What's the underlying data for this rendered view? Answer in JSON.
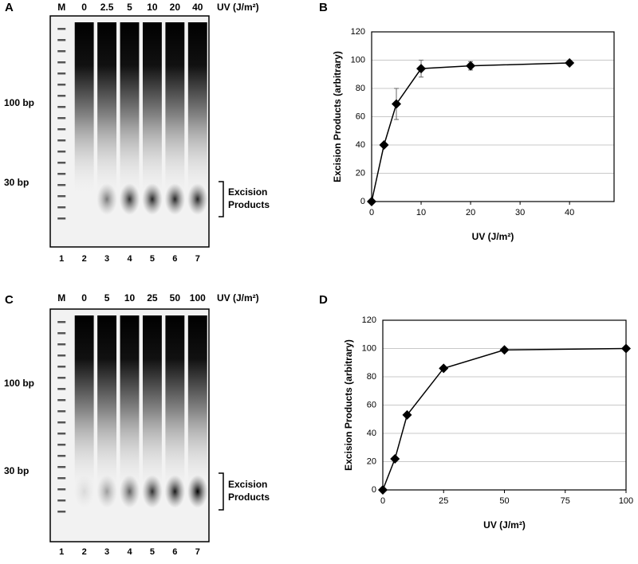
{
  "panel_labels": [
    "A",
    "B",
    "C",
    "D"
  ],
  "gels": [
    {
      "lanes": [
        "M",
        "0",
        "2.5",
        "5",
        "10",
        "20",
        "40"
      ],
      "unit": "UV (J/m²)",
      "markers": [
        "100 bp",
        "30 bp"
      ],
      "lane_numbers": [
        1,
        2,
        3,
        4,
        5,
        6,
        7
      ],
      "bracket": [
        "Excision",
        "Products"
      ]
    },
    {
      "lanes": [
        "M",
        "0",
        "5",
        "10",
        "25",
        "50",
        "100"
      ],
      "unit": "UV (J/m²)",
      "markers": [
        "100 bp",
        "30 bp"
      ],
      "lane_numbers": [
        1,
        2,
        3,
        4,
        5,
        6,
        7
      ],
      "bracket": [
        "Excision",
        "Products"
      ]
    }
  ],
  "chart_data": [
    {
      "type": "line",
      "x_label": "UV (J/m²)",
      "y_label": "Excision Products (arbitrary)",
      "x": [
        0,
        2.5,
        5,
        10,
        20,
        40
      ],
      "series": [
        {
          "color": "#000000",
          "values": [
            0,
            40,
            69,
            94,
            96,
            98
          ],
          "errors": [
            0,
            1,
            11,
            6,
            3,
            1
          ]
        }
      ],
      "xlim": [
        0,
        49
      ],
      "xticks": [
        0,
        10,
        20,
        30,
        40
      ],
      "ylim": [
        0,
        120
      ],
      "yticks": [
        0,
        20,
        40,
        60,
        80,
        100,
        120
      ],
      "grid": true
    },
    {
      "type": "line",
      "x_label": "UV (J/m²)",
      "y_label": "Excision Products (arbitrary)",
      "x": [
        0,
        5,
        10,
        25,
        50,
        100
      ],
      "series": [
        {
          "color": "#000000",
          "values": [
            0,
            22,
            53,
            86,
            99,
            100
          ]
        }
      ],
      "xlim": [
        0,
        100
      ],
      "xticks": [
        0,
        25,
        50,
        75,
        100
      ],
      "ylim": [
        0,
        120
      ],
      "yticks": [
        0,
        20,
        40,
        60,
        80,
        100,
        120
      ],
      "grid": true
    }
  ]
}
